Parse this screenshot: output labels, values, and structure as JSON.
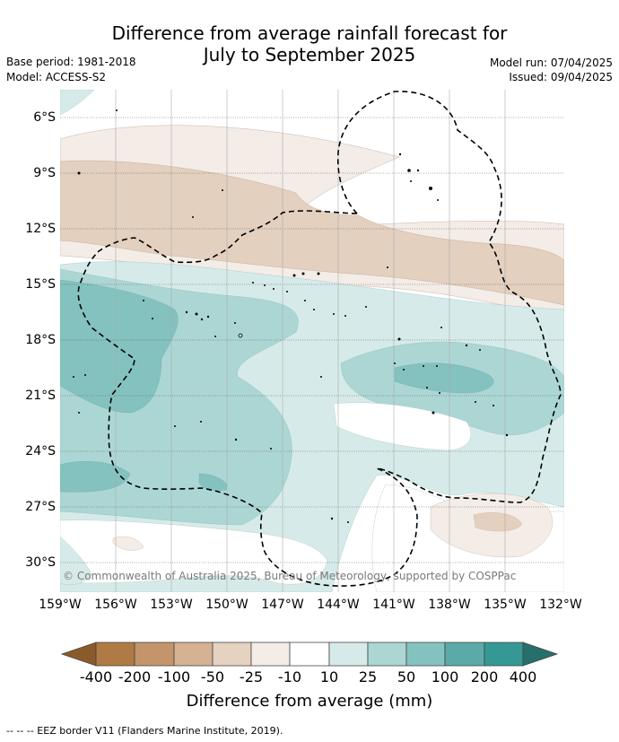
{
  "title_line1": "Difference from average rainfall forecast for",
  "title_line2": "July to September 2025",
  "base_period": "Base period: 1981-2018",
  "model": "Model: ACCESS-S2",
  "model_run": "Model run: 07/04/2025",
  "issued": "Issued: 09/04/2025",
  "copyright": "© Commonwealth of Australia 2025, Bureau of Meteorology, supported by COSPPac",
  "footnote": "--  --  -- EEZ border V11 (Flanders Marine Institute, 2019).",
  "map": {
    "lat_labels": [
      "6°S",
      "9°S",
      "12°S",
      "15°S",
      "18°S",
      "21°S",
      "24°S",
      "27°S",
      "30°S"
    ],
    "lon_labels": [
      "159°W",
      "156°W",
      "153°W",
      "150°W",
      "147°W",
      "144°W",
      "141°W",
      "138°W",
      "135°W",
      "132°W"
    ]
  },
  "colorbar": {
    "title": "Difference from average (mm)",
    "tick_labels": [
      "-400",
      "-200",
      "-100",
      "-50",
      "-25",
      "-10",
      "10",
      "25",
      "50",
      "100",
      "200",
      "400"
    ],
    "colors": [
      "#8b5a2b",
      "#b07a45",
      "#c4956b",
      "#d4b292",
      "#e5d2c1",
      "#f4ece6",
      "#ffffff",
      "#d6ebe9",
      "#acd6d4",
      "#84c2bf",
      "#5aaaa8",
      "#369895",
      "#256f6c"
    ]
  }
}
